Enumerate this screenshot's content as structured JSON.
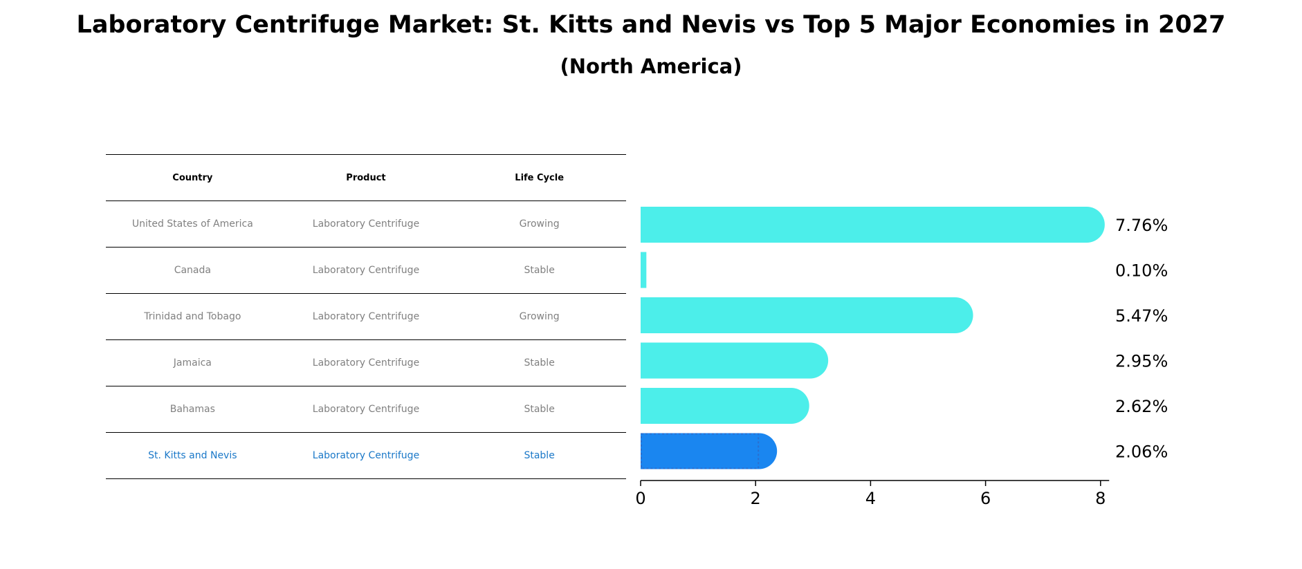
{
  "chart_data": {
    "type": "bar",
    "orientation": "horizontal",
    "title": "Laboratory Centrifuge Market: St. Kitts and Nevis vs Top 5 Major Economies in 2027",
    "subtitle": "(North America)",
    "categories": [
      "United States of America",
      "Canada",
      "Trinidad and Tobago",
      "Jamaica",
      "Bahamas",
      "St. Kitts and Nevis"
    ],
    "values": [
      7.76,
      0.1,
      5.47,
      2.95,
      2.62,
      2.06
    ],
    "value_labels": [
      "7.76%",
      "0.10%",
      "5.47%",
      "2.95%",
      "2.62%",
      "2.06%"
    ],
    "highlight_index": 5,
    "xlim": [
      0,
      8.15
    ],
    "xticks": [
      0,
      2,
      4,
      6,
      8
    ],
    "xtick_labels": [
      "0",
      "2",
      "4",
      "6",
      "8"
    ],
    "xlabel": "",
    "ylabel": "",
    "grid": false,
    "colors": {
      "bar": "#4ceeea",
      "highlight_bar": "#1a86f0",
      "highlight_text": "#1a78c8",
      "muted_text": "#808080"
    }
  },
  "table": {
    "headers": [
      "Country",
      "Product",
      "Life Cycle"
    ],
    "rows": [
      [
        "United States of America",
        "Laboratory Centrifuge",
        "Growing"
      ],
      [
        "Canada",
        "Laboratory Centrifuge",
        "Stable"
      ],
      [
        "Trinidad and Tobago",
        "Laboratory Centrifuge",
        "Growing"
      ],
      [
        "Jamaica",
        "Laboratory Centrifuge",
        "Stable"
      ],
      [
        "Bahamas",
        "Laboratory Centrifuge",
        "Stable"
      ],
      [
        "St. Kitts and Nevis",
        "Laboratory Centrifuge",
        "Stable"
      ]
    ]
  }
}
